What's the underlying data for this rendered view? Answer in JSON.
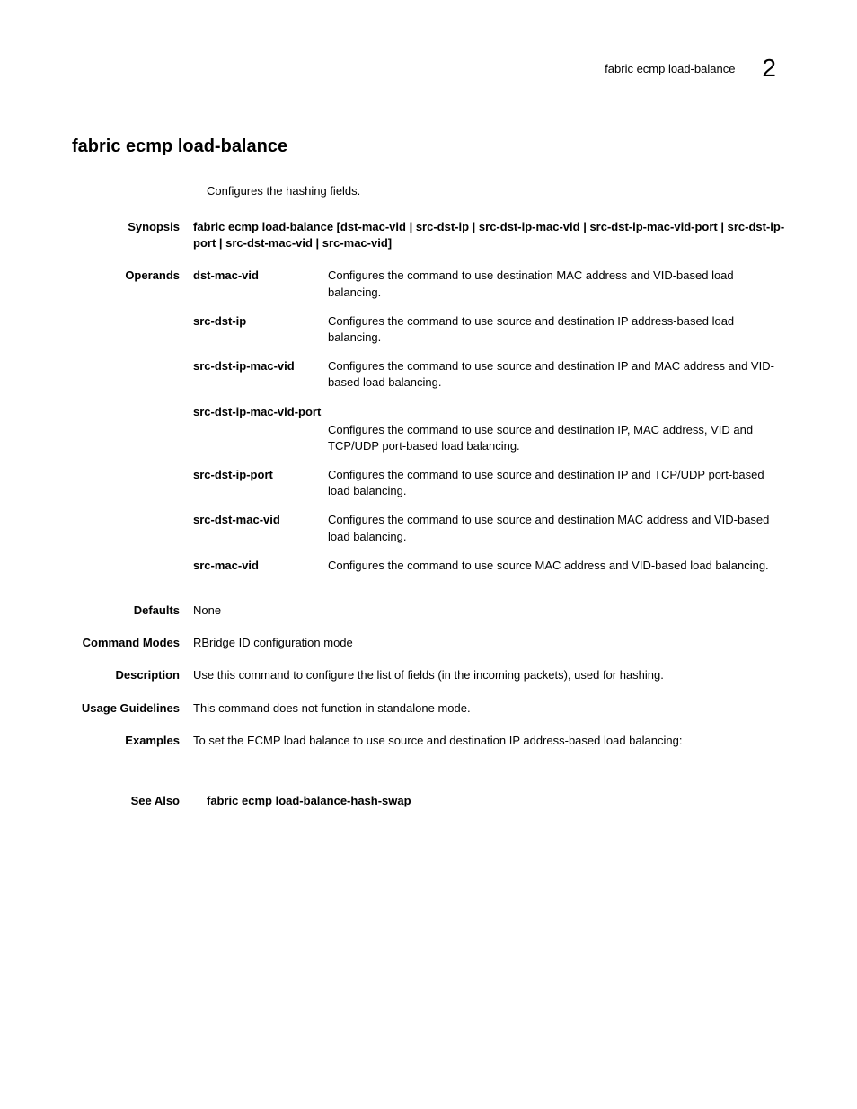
{
  "header": {
    "running_title": "fabric ecmp load-balance",
    "chapter_number": "2"
  },
  "title": "fabric ecmp load-balance",
  "intro": "Configures the hashing fields.",
  "sections": {
    "synopsis": {
      "label": "Synopsis",
      "content": "fabric ecmp load-balance [dst-mac-vid | src-dst-ip | src-dst-ip-mac-vid | src-dst-ip-mac-vid-port | src-dst-ip-port | src-dst-mac-vid | src-mac-vid]"
    },
    "operands": {
      "label": "Operands",
      "items": [
        {
          "term": "dst-mac-vid",
          "desc": "Configures the command to use destination MAC address and VID-based load balancing."
        },
        {
          "term": "src-dst-ip",
          "desc": "Configures the command to use source and destination IP address-based load balancing."
        },
        {
          "term": "src-dst-ip-mac-vid",
          "desc": "Configures the command to use source and destination IP and MAC address and VID-based load balancing."
        },
        {
          "term": "src-dst-ip-mac-vid-port",
          "desc": "Configures the command to use source and destination IP, MAC address, VID and TCP/UDP port-based load balancing.",
          "full_width": true
        },
        {
          "term": "src-dst-ip-port",
          "desc": "Configures the command to use source and destination IP and TCP/UDP port-based load balancing."
        },
        {
          "term": "src-dst-mac-vid",
          "desc": "Configures the command to use source and destination MAC address and VID-based load balancing."
        },
        {
          "term": "src-mac-vid",
          "desc": "Configures the command to use source MAC address and VID-based load balancing."
        }
      ]
    },
    "defaults": {
      "label": "Defaults",
      "content": "None"
    },
    "command_modes": {
      "label": "Command Modes",
      "content": "RBridge ID configuration mode"
    },
    "description": {
      "label": "Description",
      "content": "Use this command to configure the list of fields (in the incoming packets), used for hashing."
    },
    "usage_guidelines": {
      "label": "Usage Guidelines",
      "content": "This command does not function in standalone mode."
    },
    "examples": {
      "label": "Examples",
      "content": "To set the ECMP load balance to use source and destination IP address-based load balancing:"
    },
    "see_also": {
      "label": "See Also",
      "content": "fabric ecmp load-balance-hash-swap"
    }
  }
}
